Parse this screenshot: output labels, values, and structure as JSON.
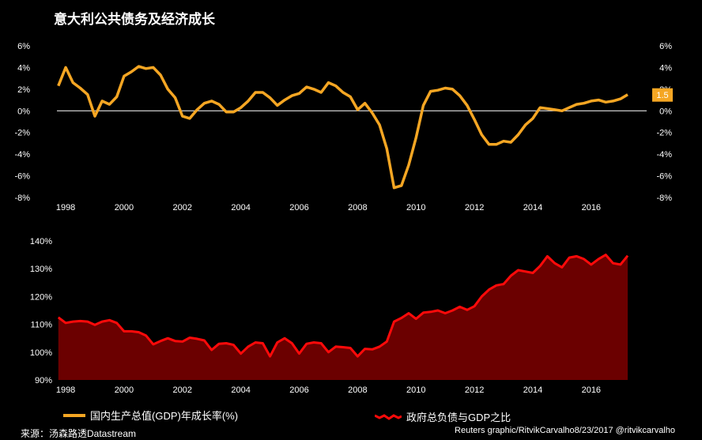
{
  "title": "意大利公共债务及经济成长",
  "legend": {
    "gdp_label": "国内生产总值(GDP)年成长率(%)",
    "debt_label": "政府总负债与GDP之比"
  },
  "source": "来源：汤森路透Datastream",
  "credit": "Reuters graphic/RitvikCarvalho8/23/2017  @ritvikcarvalho",
  "colors": {
    "gdp_line": "#f5a623",
    "debt_line": "#ff0a0a",
    "debt_fill": "#6b0000",
    "zero_line": "#ffffff",
    "axis_text": "#ffffff"
  },
  "chart_data": [
    {
      "type": "line",
      "series": [
        {
          "name": "国内生产总值(GDP)年成长率(%)",
          "x": [
            1997.75,
            1998,
            1998.25,
            1998.5,
            1998.75,
            1999,
            1999.25,
            1999.5,
            1999.75,
            2000,
            2000.25,
            2000.5,
            2000.75,
            2001,
            2001.25,
            2001.5,
            2001.75,
            2002,
            2002.25,
            2002.5,
            2002.75,
            2003,
            2003.25,
            2003.5,
            2003.75,
            2004,
            2004.25,
            2004.5,
            2004.75,
            2005,
            2005.25,
            2005.5,
            2005.75,
            2006,
            2006.25,
            2006.5,
            2006.75,
            2007,
            2007.25,
            2007.5,
            2007.75,
            2008,
            2008.25,
            2008.5,
            2008.75,
            2009,
            2009.25,
            2009.5,
            2009.75,
            2010,
            2010.25,
            2010.5,
            2010.75,
            2011,
            2011.25,
            2011.5,
            2011.75,
            2012,
            2012.25,
            2012.5,
            2012.75,
            2013,
            2013.25,
            2013.5,
            2013.75,
            2014,
            2014.25,
            2014.5,
            2014.75,
            2015,
            2015.25,
            2015.5,
            2015.75,
            2016,
            2016.25,
            2016.5,
            2016.75,
            2017,
            2017.25
          ],
          "values": [
            2.3,
            4.0,
            2.6,
            2.1,
            1.5,
            -0.5,
            0.9,
            0.6,
            1.3,
            3.2,
            3.6,
            4.1,
            3.9,
            4.0,
            3.3,
            2.0,
            1.2,
            -0.5,
            -0.7,
            0.1,
            0.7,
            0.9,
            0.6,
            -0.1,
            -0.1,
            0.3,
            0.9,
            1.7,
            1.7,
            1.2,
            0.5,
            1.0,
            1.4,
            1.6,
            2.2,
            2.0,
            1.7,
            2.6,
            2.3,
            1.7,
            1.3,
            0.1,
            0.7,
            -0.2,
            -1.3,
            -3.5,
            -7.1,
            -6.9,
            -5.0,
            -2.5,
            0.5,
            1.8,
            1.9,
            2.1,
            2.0,
            1.4,
            0.5,
            -0.8,
            -2.2,
            -3.1,
            -3.1,
            -2.8,
            -2.9,
            -2.2,
            -1.3,
            -0.7,
            0.3,
            0.2,
            0.1,
            0.0,
            0.3,
            0.6,
            0.7,
            0.9,
            1.0,
            0.8,
            0.9,
            1.1,
            1.5
          ]
        }
      ],
      "value_label": "1.5",
      "y_ticks": [
        "6%",
        "4%",
        "2%",
        "0%",
        "-2%",
        "-4%",
        "-6%",
        "-8%"
      ],
      "x_ticks": [
        "1998",
        "2000",
        "2002",
        "2004",
        "2006",
        "2008",
        "2010",
        "2012",
        "2014",
        "2016"
      ],
      "ylim": [
        -8,
        6
      ],
      "xlim": [
        1997.7,
        2017.9
      ],
      "grid": false
    },
    {
      "type": "area",
      "series": [
        {
          "name": "政府总负债与GDP之比",
          "x": [
            1997.75,
            1998,
            1998.25,
            1998.5,
            1998.75,
            1999,
            1999.25,
            1999.5,
            1999.75,
            2000,
            2000.25,
            2000.5,
            2000.75,
            2001,
            2001.25,
            2001.5,
            2001.75,
            2002,
            2002.25,
            2002.5,
            2002.75,
            2003,
            2003.25,
            2003.5,
            2003.75,
            2004,
            2004.25,
            2004.5,
            2004.75,
            2005,
            2005.25,
            2005.5,
            2005.75,
            2006,
            2006.25,
            2006.5,
            2006.75,
            2007,
            2007.25,
            2007.5,
            2007.75,
            2008,
            2008.25,
            2008.5,
            2008.75,
            2009,
            2009.25,
            2009.5,
            2009.75,
            2010,
            2010.25,
            2010.5,
            2010.75,
            2011,
            2011.25,
            2011.5,
            2011.75,
            2012,
            2012.25,
            2012.5,
            2012.75,
            2013,
            2013.25,
            2013.5,
            2013.75,
            2014,
            2014.25,
            2014.5,
            2014.75,
            2015,
            2015.25,
            2015.5,
            2015.75,
            2016,
            2016.25,
            2016.5,
            2016.75,
            2017,
            2017.25
          ],
          "values": [
            112.5,
            110.5,
            111.0,
            111.2,
            111.0,
            109.8,
            111.0,
            111.5,
            110.5,
            107.5,
            107.5,
            107.2,
            106.0,
            102.8,
            104.0,
            105.0,
            104.0,
            103.8,
            105.2,
            104.8,
            104.2,
            100.8,
            103.0,
            103.2,
            102.6,
            99.5,
            102.0,
            103.5,
            103.2,
            98.5,
            103.5,
            105.0,
            103.2,
            99.5,
            103.0,
            103.5,
            103.2,
            100.0,
            102.0,
            101.8,
            101.5,
            98.5,
            101.2,
            101.0,
            102.0,
            103.8,
            111.0,
            112.3,
            114.0,
            112.0,
            114.2,
            114.5,
            115.0,
            114.0,
            115.0,
            116.3,
            115.2,
            116.5,
            120.0,
            122.5,
            124.0,
            124.5,
            127.5,
            129.5,
            129.0,
            128.5,
            131.0,
            134.5,
            132.0,
            130.5,
            134.0,
            134.5,
            133.5,
            131.5,
            133.5,
            135.0,
            132.0,
            131.5,
            134.7
          ]
        }
      ],
      "y_ticks": [
        "140%",
        "130%",
        "120%",
        "110%",
        "100%",
        "90%"
      ],
      "x_ticks": [
        "1998",
        "2000",
        "2002",
        "2004",
        "2006",
        "2008",
        "2010",
        "2012",
        "2014",
        "2016"
      ],
      "ylim": [
        90,
        140
      ],
      "xlim": [
        1997.7,
        2017.9
      ],
      "grid": false
    }
  ]
}
